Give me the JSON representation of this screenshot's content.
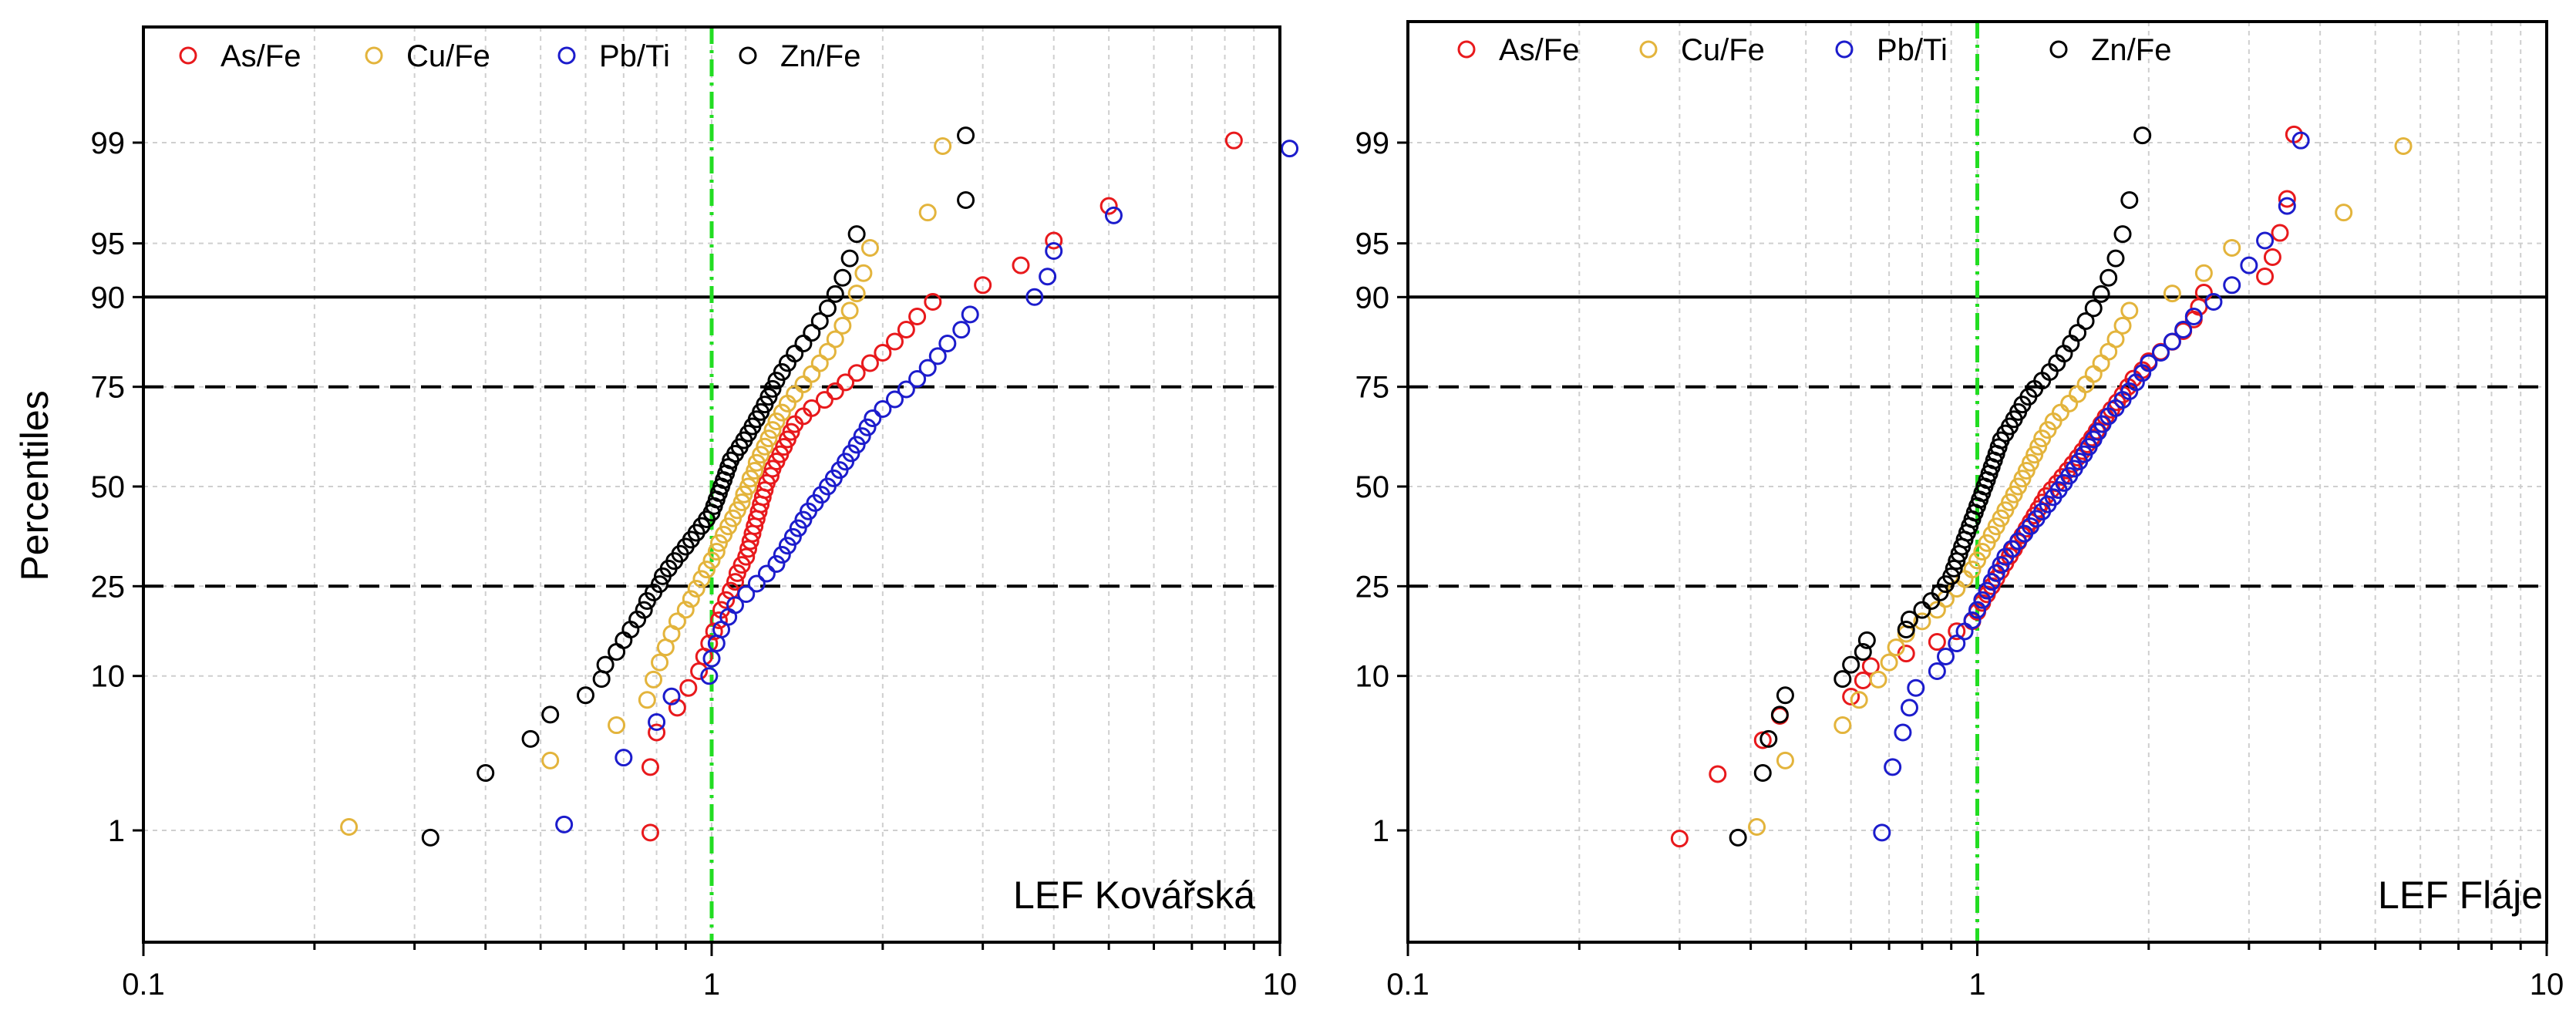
{
  "chart_data": [
    {
      "type": "scatter",
      "title": "",
      "annotation": "LEF Kovářská",
      "xlabel": "",
      "ylabel": "Percentiles",
      "xscale": "log",
      "yscale": "probability",
      "xlim": [
        0.1,
        10
      ],
      "ylim_percent": [
        0.2,
        99.95
      ],
      "x_ticks": [
        "0.1",
        "1",
        "10"
      ],
      "y_ticks": [
        1,
        10,
        25,
        50,
        75,
        90,
        95,
        99
      ],
      "y_tick_labels": [
        "1",
        "10",
        "25",
        "50",
        "75",
        "90",
        "95",
        "99"
      ],
      "reference_lines": {
        "x_value": 1,
        "x_style": "green dash-dot",
        "solid_y": 90,
        "dashed_box_y": [
          25,
          75
        ]
      },
      "legend_position": "top",
      "series": [
        {
          "name": "As/Fe",
          "color": "#e8191c",
          "values": [
            0.78,
            0.78,
            0.8,
            0.87,
            0.91,
            0.95,
            0.97,
            0.99,
            1.01,
            1.03,
            1.04,
            1.06,
            1.08,
            1.1,
            1.11,
            1.13,
            1.15,
            1.16,
            1.17,
            1.18,
            1.19,
            1.2,
            1.21,
            1.22,
            1.23,
            1.24,
            1.25,
            1.27,
            1.28,
            1.3,
            1.32,
            1.34,
            1.36,
            1.38,
            1.4,
            1.45,
            1.5,
            1.58,
            1.65,
            1.72,
            1.8,
            1.9,
            2.0,
            2.1,
            2.2,
            2.3,
            2.45,
            3.0,
            3.5,
            4.0,
            5.0,
            8.3
          ]
        },
        {
          "name": "Cu/Fe",
          "color": "#e3b43c",
          "values": [
            0.23,
            0.52,
            0.68,
            0.77,
            0.79,
            0.81,
            0.83,
            0.85,
            0.87,
            0.9,
            0.92,
            0.94,
            0.96,
            0.98,
            1.0,
            1.02,
            1.03,
            1.05,
            1.07,
            1.09,
            1.11,
            1.13,
            1.14,
            1.16,
            1.17,
            1.19,
            1.2,
            1.22,
            1.24,
            1.26,
            1.28,
            1.3,
            1.33,
            1.36,
            1.4,
            1.45,
            1.5,
            1.55,
            1.6,
            1.65,
            1.7,
            1.75,
            1.8,
            1.85,
            1.9,
            2.4,
            2.55
          ]
        },
        {
          "name": "Pb/Ti",
          "color": "#1c1ccc",
          "values": [
            0.55,
            0.7,
            0.8,
            0.85,
            0.99,
            1.0,
            1.02,
            1.04,
            1.07,
            1.1,
            1.15,
            1.2,
            1.25,
            1.3,
            1.33,
            1.36,
            1.39,
            1.42,
            1.45,
            1.48,
            1.52,
            1.56,
            1.6,
            1.64,
            1.68,
            1.72,
            1.76,
            1.8,
            1.84,
            1.88,
            1.92,
            2.0,
            2.1,
            2.2,
            2.3,
            2.4,
            2.5,
            2.6,
            2.75,
            2.85,
            3.7,
            3.9,
            4.0,
            5.1,
            10.4
          ]
        },
        {
          "name": "Zn/Fe",
          "color": "#000000",
          "values": [
            0.32,
            0.4,
            0.48,
            0.52,
            0.6,
            0.64,
            0.65,
            0.68,
            0.7,
            0.72,
            0.74,
            0.76,
            0.77,
            0.79,
            0.81,
            0.82,
            0.84,
            0.86,
            0.88,
            0.9,
            0.92,
            0.94,
            0.96,
            0.98,
            1.0,
            1.01,
            1.02,
            1.03,
            1.04,
            1.05,
            1.06,
            1.07,
            1.08,
            1.1,
            1.12,
            1.14,
            1.16,
            1.18,
            1.2,
            1.22,
            1.24,
            1.26,
            1.28,
            1.3,
            1.33,
            1.36,
            1.4,
            1.45,
            1.5,
            1.55,
            1.6,
            1.65,
            1.7,
            1.75,
            1.8,
            2.8,
            2.8
          ]
        }
      ]
    },
    {
      "type": "scatter",
      "title": "",
      "annotation": "LEF Fláje",
      "xlabel": "",
      "ylabel": "",
      "xscale": "log",
      "yscale": "probability",
      "xlim": [
        0.1,
        10
      ],
      "ylim_percent": [
        0.2,
        99.95
      ],
      "x_ticks": [
        "0.1",
        "1",
        "10"
      ],
      "y_ticks": [
        1,
        10,
        25,
        50,
        75,
        90,
        95,
        99
      ],
      "y_tick_labels": [
        "1",
        "10",
        "25",
        "50",
        "75",
        "90",
        "95",
        "99"
      ],
      "reference_lines": {
        "x_value": 1,
        "x_style": "green dash-dot",
        "solid_y": 90,
        "dashed_box_y": [
          25,
          75
        ]
      },
      "legend_position": "top",
      "series": [
        {
          "name": "As/Fe",
          "color": "#e8191c",
          "values": [
            0.3,
            0.35,
            0.42,
            0.45,
            0.6,
            0.63,
            0.65,
            0.75,
            0.85,
            0.92,
            0.98,
            1.0,
            1.02,
            1.04,
            1.06,
            1.08,
            1.1,
            1.12,
            1.14,
            1.16,
            1.18,
            1.2,
            1.22,
            1.24,
            1.26,
            1.28,
            1.3,
            1.32,
            1.35,
            1.38,
            1.41,
            1.44,
            1.47,
            1.5,
            1.53,
            1.56,
            1.59,
            1.62,
            1.65,
            1.68,
            1.72,
            1.76,
            1.8,
            1.84,
            1.88,
            1.95,
            2.0,
            2.1,
            2.2,
            2.3,
            2.4,
            2.45,
            2.5,
            3.2,
            3.3,
            3.4,
            3.5,
            3.6
          ]
        },
        {
          "name": "Cu/Fe",
          "color": "#e3b43c",
          "values": [
            0.41,
            0.46,
            0.58,
            0.62,
            0.67,
            0.7,
            0.72,
            0.75,
            0.8,
            0.85,
            0.88,
            0.92,
            0.95,
            0.98,
            1.0,
            1.02,
            1.04,
            1.06,
            1.08,
            1.1,
            1.12,
            1.14,
            1.16,
            1.18,
            1.2,
            1.22,
            1.24,
            1.26,
            1.28,
            1.3,
            1.33,
            1.36,
            1.4,
            1.45,
            1.5,
            1.55,
            1.6,
            1.65,
            1.7,
            1.75,
            1.8,
            1.85,
            2.2,
            2.5,
            2.8,
            4.4,
            5.6
          ]
        },
        {
          "name": "Pb/Ti",
          "color": "#1c1ccc",
          "values": [
            0.68,
            0.71,
            0.74,
            0.76,
            0.78,
            0.85,
            0.88,
            0.92,
            0.95,
            0.98,
            1.0,
            1.02,
            1.04,
            1.06,
            1.08,
            1.1,
            1.12,
            1.15,
            1.18,
            1.21,
            1.24,
            1.27,
            1.3,
            1.33,
            1.36,
            1.39,
            1.42,
            1.45,
            1.48,
            1.51,
            1.54,
            1.57,
            1.6,
            1.63,
            1.66,
            1.7,
            1.75,
            1.8,
            1.85,
            1.9,
            1.95,
            2.0,
            2.1,
            2.2,
            2.3,
            2.4,
            2.6,
            2.8,
            3.0,
            3.2,
            3.5,
            3.7
          ]
        },
        {
          "name": "Zn/Fe",
          "color": "#000000",
          "values": [
            0.38,
            0.42,
            0.43,
            0.45,
            0.46,
            0.58,
            0.6,
            0.63,
            0.64,
            0.75,
            0.76,
            0.8,
            0.83,
            0.86,
            0.88,
            0.9,
            0.91,
            0.92,
            0.93,
            0.94,
            0.95,
            0.96,
            0.97,
            0.98,
            0.99,
            1.0,
            1.01,
            1.02,
            1.03,
            1.04,
            1.05,
            1.06,
            1.07,
            1.08,
            1.09,
            1.1,
            1.12,
            1.14,
            1.16,
            1.18,
            1.2,
            1.23,
            1.26,
            1.3,
            1.34,
            1.38,
            1.42,
            1.46,
            1.5,
            1.55,
            1.6,
            1.65,
            1.7,
            1.75,
            1.8,
            1.85,
            1.95
          ]
        }
      ]
    }
  ]
}
